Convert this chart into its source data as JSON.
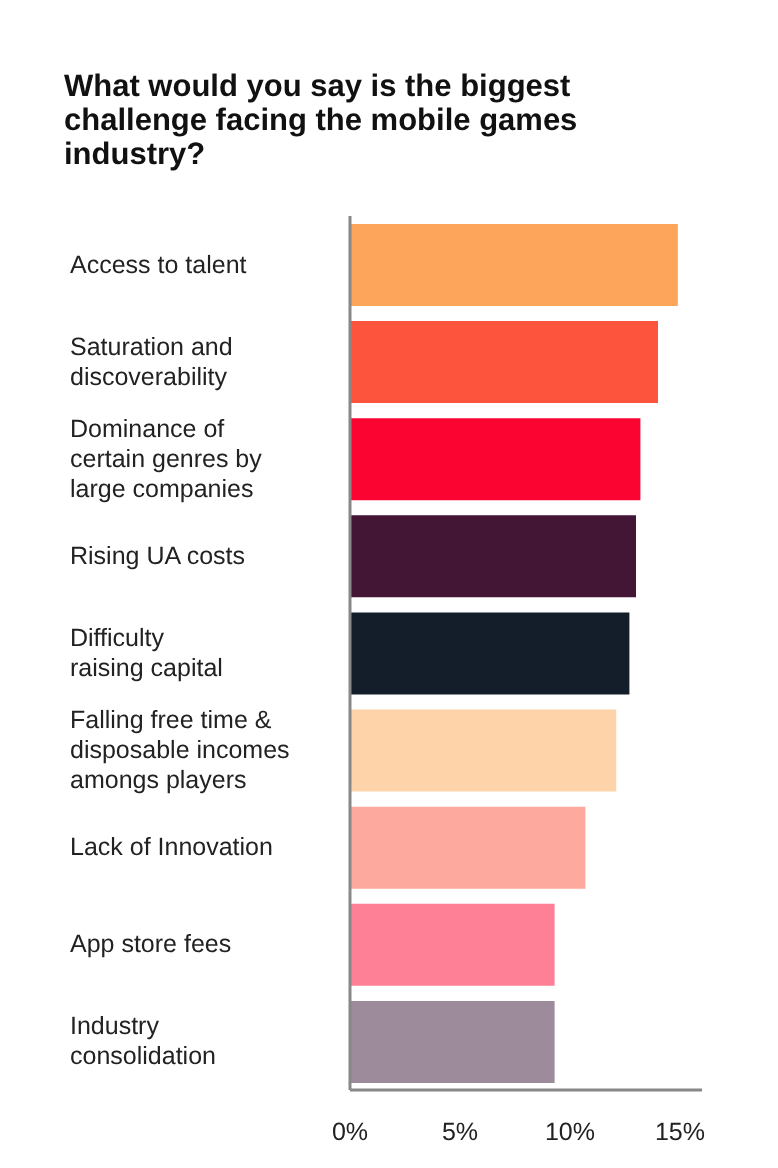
{
  "chart_data": {
    "type": "bar",
    "orientation": "horizontal",
    "title": "What would you say is the biggest challenge facing the mobile games industry?",
    "categories": [
      "Access to talent",
      "Saturation and\ndiscoverability",
      "Dominance of\ncertain genres by\nlarge companies",
      "Rising UA costs",
      "Difficulty\nraising capital",
      "Falling free time &\ndisposable incomes\namongs players",
      "Lack of Innovation",
      "App store fees",
      "Industry\nconsolidation"
    ],
    "values": [
      14.9,
      14.0,
      13.2,
      13.0,
      12.7,
      12.1,
      10.7,
      9.3,
      9.3
    ],
    "colors": [
      "#fda55a",
      "#fd553d",
      "#fc0432",
      "#421634",
      "#141e2b",
      "#fed3aa",
      "#fea99e",
      "#fe8097",
      "#9d8a9a"
    ],
    "xlim": [
      0,
      16
    ],
    "xticks": [
      {
        "value": 0,
        "label": "0%"
      },
      {
        "value": 5,
        "label": "5%"
      },
      {
        "value": 10,
        "label": "10%"
      },
      {
        "value": 15,
        "label": "15%"
      }
    ],
    "grid": false,
    "legend": false
  }
}
